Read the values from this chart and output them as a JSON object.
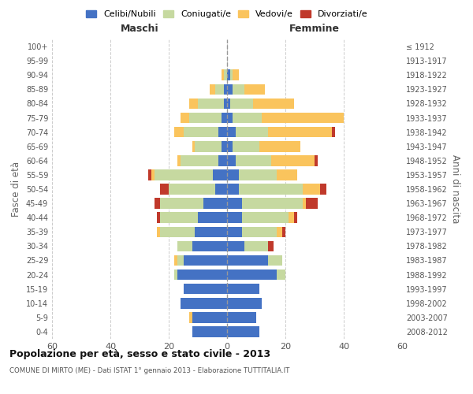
{
  "age_groups": [
    "0-4",
    "5-9",
    "10-14",
    "15-19",
    "20-24",
    "25-29",
    "30-34",
    "35-39",
    "40-44",
    "45-49",
    "50-54",
    "55-59",
    "60-64",
    "65-69",
    "70-74",
    "75-79",
    "80-84",
    "85-89",
    "90-94",
    "95-99",
    "100+"
  ],
  "birth_years": [
    "2008-2012",
    "2003-2007",
    "1998-2002",
    "1993-1997",
    "1988-1992",
    "1983-1987",
    "1978-1982",
    "1973-1977",
    "1968-1972",
    "1963-1967",
    "1958-1962",
    "1953-1957",
    "1948-1952",
    "1943-1947",
    "1938-1942",
    "1933-1937",
    "1928-1932",
    "1923-1927",
    "1918-1922",
    "1913-1917",
    "≤ 1912"
  ],
  "maschi": {
    "celibi": [
      12,
      12,
      16,
      15,
      17,
      15,
      12,
      11,
      10,
      8,
      4,
      5,
      3,
      2,
      3,
      2,
      1,
      1,
      0,
      0,
      0
    ],
    "coniugati": [
      0,
      0,
      0,
      0,
      1,
      2,
      5,
      12,
      13,
      15,
      16,
      20,
      13,
      9,
      12,
      11,
      9,
      3,
      1,
      0,
      0
    ],
    "vedovi": [
      0,
      1,
      0,
      0,
      0,
      1,
      0,
      1,
      0,
      0,
      0,
      1,
      1,
      1,
      3,
      3,
      3,
      2,
      1,
      0,
      0
    ],
    "divorziati": [
      0,
      0,
      0,
      0,
      0,
      0,
      0,
      0,
      1,
      2,
      3,
      1,
      0,
      0,
      0,
      0,
      0,
      0,
      0,
      0,
      0
    ]
  },
  "femmine": {
    "nubili": [
      11,
      10,
      12,
      11,
      17,
      14,
      6,
      5,
      5,
      5,
      4,
      4,
      3,
      2,
      3,
      2,
      1,
      2,
      1,
      0,
      0
    ],
    "coniugate": [
      0,
      0,
      0,
      0,
      3,
      5,
      8,
      12,
      16,
      21,
      22,
      13,
      12,
      9,
      11,
      10,
      8,
      4,
      1,
      0,
      0
    ],
    "vedove": [
      0,
      0,
      0,
      0,
      0,
      0,
      0,
      2,
      2,
      1,
      6,
      7,
      15,
      14,
      22,
      28,
      14,
      7,
      2,
      0,
      0
    ],
    "divorziate": [
      0,
      0,
      0,
      0,
      0,
      0,
      2,
      1,
      1,
      4,
      2,
      0,
      1,
      0,
      1,
      0,
      0,
      0,
      0,
      0,
      0
    ]
  },
  "colors": {
    "celibi_nubili": "#4472c4",
    "coniugati": "#c6d9a0",
    "vedovi": "#fac45d",
    "divorziati": "#c0392b"
  },
  "xlim": 60,
  "title": "Popolazione per età, sesso e stato civile - 2013",
  "subtitle": "COMUNE DI MIRTO (ME) - Dati ISTAT 1° gennaio 2013 - Elaborazione TUTTITALIA.IT",
  "ylabel_left": "Fasce di età",
  "ylabel_right": "Anni di nascita",
  "xlabel_maschi": "Maschi",
  "xlabel_femmine": "Femmine",
  "legend_labels": [
    "Celibi/Nubili",
    "Coniugati/e",
    "Vedovi/e",
    "Divorziati/e"
  ]
}
